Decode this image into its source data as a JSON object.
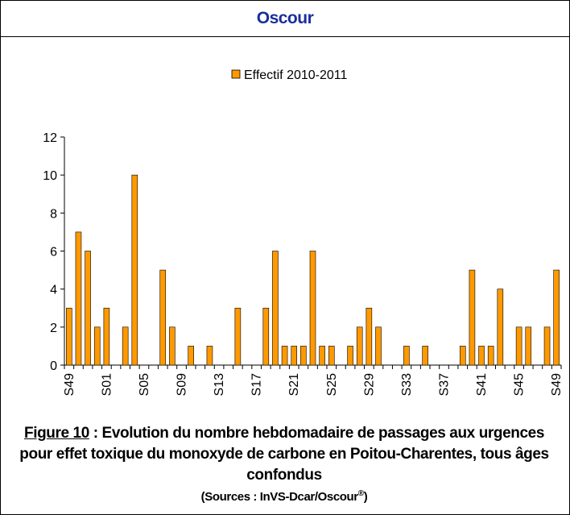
{
  "header": {
    "title": "Oscour"
  },
  "chart_data": {
    "type": "bar",
    "series": [
      {
        "name": "Effectif 2010-2011",
        "color": "#ff9900",
        "values": [
          3,
          7,
          6,
          2,
          3,
          0,
          2,
          10,
          0,
          0,
          5,
          2,
          0,
          1,
          0,
          1,
          0,
          0,
          3,
          0,
          0,
          3,
          6,
          1,
          1,
          1,
          6,
          1,
          1,
          0,
          1,
          2,
          3,
          2,
          0,
          0,
          1,
          0,
          1,
          0,
          0,
          0,
          1,
          5,
          1,
          1,
          4,
          0,
          2,
          2,
          0,
          2,
          5
        ]
      }
    ],
    "categories": [
      "S49",
      null,
      null,
      null,
      "S01",
      null,
      null,
      null,
      "S05",
      null,
      null,
      null,
      "S09",
      null,
      null,
      null,
      "S13",
      null,
      null,
      null,
      "S17",
      null,
      null,
      null,
      "S21",
      null,
      null,
      null,
      "S25",
      null,
      null,
      null,
      "S29",
      null,
      null,
      null,
      "S33",
      null,
      null,
      null,
      "S37",
      null,
      null,
      null,
      "S41",
      null,
      null,
      null,
      "S45",
      null,
      null,
      null,
      "S49"
    ],
    "ylim": [
      0,
      12
    ],
    "yticks": [
      0,
      2,
      4,
      6,
      8,
      10,
      12
    ],
    "grid": false
  },
  "caption": {
    "label": "Figure 10",
    "text": " : Evolution du nombre hebdomadaire de passages aux urgences pour effet toxique du monoxyde de carbone en Poitou-Charentes, tous âges confondus",
    "source": "(Sources : InVS-Dcar/Oscour",
    "source_mark": "®",
    "source_end": ")"
  }
}
